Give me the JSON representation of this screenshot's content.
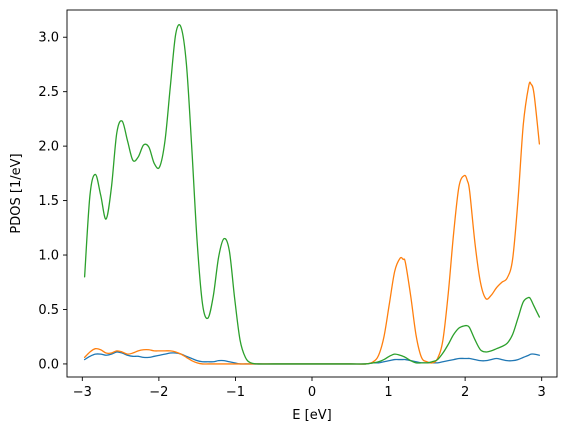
{
  "chart_data": {
    "type": "line",
    "title": "",
    "xlabel": "E [eV]",
    "ylabel": "PDOS [1/eV]",
    "xlim": [
      -3.2,
      3.2
    ],
    "ylim": [
      -0.12,
      3.25
    ],
    "grid": false,
    "x_ticks": [
      -3,
      -2,
      -1,
      0,
      1,
      2,
      3
    ],
    "x_tick_labels": [
      "−3",
      "−2",
      "−1",
      "0",
      "1",
      "2",
      "3"
    ],
    "y_ticks": [
      0.0,
      0.5,
      1.0,
      1.5,
      2.0,
      2.5,
      3.0
    ],
    "y_tick_labels": [
      "0.0",
      "0.5",
      "1.0",
      "1.5",
      "2.0",
      "2.5",
      "3.0"
    ],
    "x": [
      -2.97,
      -2.9,
      -2.83,
      -2.76,
      -2.69,
      -2.62,
      -2.55,
      -2.48,
      -2.41,
      -2.34,
      -2.27,
      -2.2,
      -2.13,
      -2.06,
      -1.99,
      -1.92,
      -1.85,
      -1.78,
      -1.71,
      -1.64,
      -1.57,
      -1.5,
      -1.43,
      -1.36,
      -1.29,
      -1.22,
      -1.15,
      -1.08,
      -1.01,
      -0.94,
      -0.87,
      -0.8,
      -0.7,
      -0.5,
      -0.2,
      0.0,
      0.2,
      0.5,
      0.7,
      0.8,
      0.87,
      0.94,
      1.01,
      1.08,
      1.15,
      1.19,
      1.22,
      1.29,
      1.36,
      1.43,
      1.5,
      1.57,
      1.64,
      1.71,
      1.78,
      1.85,
      1.92,
      1.99,
      2.03,
      2.06,
      2.13,
      2.2,
      2.27,
      2.34,
      2.41,
      2.48,
      2.55,
      2.62,
      2.69,
      2.76,
      2.83,
      2.86,
      2.9,
      2.97
    ],
    "series": [
      {
        "color": "#1f77b4",
        "values": [
          0.04,
          0.07,
          0.09,
          0.09,
          0.08,
          0.09,
          0.11,
          0.1,
          0.08,
          0.07,
          0.07,
          0.06,
          0.06,
          0.07,
          0.08,
          0.09,
          0.1,
          0.1,
          0.09,
          0.07,
          0.05,
          0.03,
          0.02,
          0.02,
          0.02,
          0.03,
          0.03,
          0.02,
          0.01,
          0.0,
          0.0,
          0.0,
          0.0,
          0.0,
          0.0,
          0.0,
          0.0,
          0.0,
          0.0,
          0.01,
          0.01,
          0.02,
          0.03,
          0.04,
          0.04,
          0.04,
          0.04,
          0.03,
          0.02,
          0.01,
          0.01,
          0.01,
          0.01,
          0.02,
          0.03,
          0.04,
          0.05,
          0.05,
          0.05,
          0.05,
          0.04,
          0.03,
          0.03,
          0.04,
          0.05,
          0.04,
          0.03,
          0.03,
          0.04,
          0.06,
          0.08,
          0.09,
          0.09,
          0.08
        ]
      },
      {
        "color": "#ff7f0e",
        "values": [
          0.06,
          0.11,
          0.14,
          0.13,
          0.1,
          0.1,
          0.12,
          0.11,
          0.09,
          0.1,
          0.12,
          0.13,
          0.13,
          0.12,
          0.12,
          0.12,
          0.12,
          0.11,
          0.09,
          0.06,
          0.03,
          0.01,
          0.0,
          0.0,
          0.0,
          0.0,
          0.0,
          0.0,
          0.0,
          0.0,
          0.0,
          0.0,
          0.0,
          0.0,
          0.0,
          0.0,
          0.0,
          0.0,
          0.0,
          0.02,
          0.08,
          0.25,
          0.55,
          0.85,
          0.97,
          0.96,
          0.93,
          0.62,
          0.26,
          0.06,
          0.02,
          0.01,
          0.05,
          0.22,
          0.65,
          1.2,
          1.63,
          1.73,
          1.68,
          1.58,
          1.1,
          0.75,
          0.6,
          0.63,
          0.7,
          0.75,
          0.79,
          0.96,
          1.5,
          2.2,
          2.55,
          2.57,
          2.48,
          2.02
        ]
      },
      {
        "color": "#2ca02c",
        "values": [
          0.8,
          1.55,
          1.74,
          1.55,
          1.33,
          1.62,
          2.12,
          2.23,
          2.05,
          1.87,
          1.9,
          2.01,
          1.99,
          1.84,
          1.81,
          2.05,
          2.55,
          3.03,
          3.09,
          2.75,
          1.98,
          1.12,
          0.55,
          0.42,
          0.62,
          0.98,
          1.15,
          1.04,
          0.6,
          0.22,
          0.06,
          0.01,
          0.0,
          0.0,
          0.0,
          0.0,
          0.0,
          0.0,
          0.0,
          0.01,
          0.02,
          0.04,
          0.07,
          0.09,
          0.08,
          0.07,
          0.06,
          0.03,
          0.01,
          0.01,
          0.01,
          0.02,
          0.04,
          0.1,
          0.18,
          0.27,
          0.33,
          0.35,
          0.35,
          0.33,
          0.22,
          0.13,
          0.11,
          0.12,
          0.14,
          0.16,
          0.19,
          0.27,
          0.42,
          0.57,
          0.61,
          0.59,
          0.53,
          0.43
        ]
      }
    ]
  }
}
